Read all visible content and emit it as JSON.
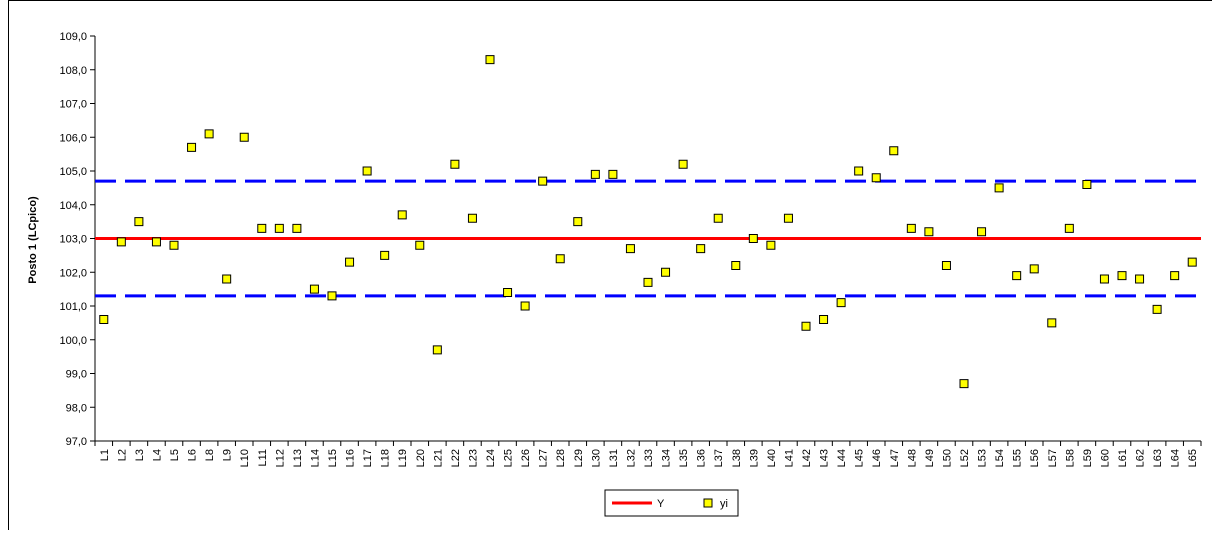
{
  "chart_data": {
    "type": "scatter",
    "title": "",
    "xlabel": "",
    "ylabel": "Posto 1 (LCpico)",
    "ylim": [
      97.0,
      109.0
    ],
    "yticks": [
      "97,0",
      "98,0",
      "99,0",
      "100,0",
      "101,0",
      "102,0",
      "103,0",
      "104,0",
      "105,0",
      "106,0",
      "107,0",
      "108,0",
      "109,0"
    ],
    "categories": [
      "L1",
      "L2",
      "L3",
      "L4",
      "L5",
      "L6",
      "L8",
      "L9",
      "L10",
      "L11",
      "L12",
      "L13",
      "L14",
      "L15",
      "L16",
      "L17",
      "L18",
      "L19",
      "L20",
      "L21",
      "L22",
      "L23",
      "L24",
      "L25",
      "L26",
      "L27",
      "L28",
      "L29",
      "L30",
      "L31",
      "L32",
      "L33",
      "L34",
      "L35",
      "L36",
      "L37",
      "L38",
      "L39",
      "L40",
      "L41",
      "L42",
      "L43",
      "L44",
      "L45",
      "L46",
      "L47",
      "L48",
      "L49",
      "L50",
      "L52",
      "L53",
      "L54",
      "L55",
      "L56",
      "L57",
      "L58",
      "L59",
      "L60",
      "L61",
      "L62",
      "L63",
      "L64",
      "L65"
    ],
    "series": [
      {
        "name": "yi",
        "marker": "square",
        "color": "#ffff00",
        "values": [
          100.6,
          102.9,
          103.5,
          102.9,
          102.8,
          105.7,
          106.1,
          101.8,
          106.0,
          103.3,
          103.3,
          103.3,
          101.5,
          101.3,
          102.3,
          105.0,
          102.5,
          103.7,
          102.8,
          99.7,
          105.2,
          103.6,
          108.3,
          101.4,
          101.0,
          104.7,
          102.4,
          103.5,
          104.9,
          104.9,
          102.7,
          101.7,
          102.0,
          105.2,
          102.7,
          103.6,
          102.2,
          103.0,
          102.8,
          103.6,
          100.4,
          100.6,
          101.1,
          105.0,
          104.8,
          105.6,
          103.3,
          103.2,
          102.2,
          98.7,
          103.2,
          104.5,
          101.9,
          102.1,
          100.5,
          103.3,
          104.6,
          101.8,
          101.9,
          101.8,
          100.9,
          101.9,
          102.3
        ]
      },
      {
        "name": "Y",
        "type": "line",
        "color": "#ff0000",
        "value": 103.0
      }
    ],
    "limit_lines": {
      "color": "#0000ff",
      "style": "dashed",
      "values": [
        104.7,
        101.3
      ]
    },
    "grid": false,
    "legend": {
      "placement": "bottom-center",
      "entries": [
        "Y",
        "yi"
      ]
    }
  }
}
